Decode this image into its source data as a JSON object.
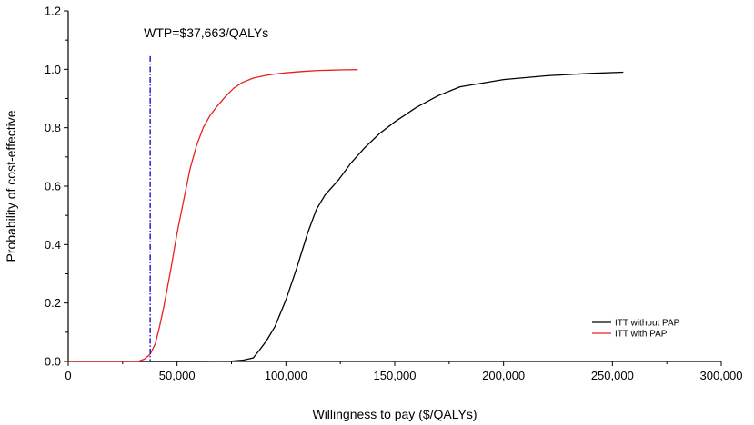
{
  "chart_data": {
    "type": "line",
    "xlabel": "Willingness to pay ($/QALYs)",
    "ylabel": "Probability of cost-effective",
    "xlim": [
      0,
      300000
    ],
    "ylim": [
      0,
      1.2
    ],
    "x_ticks": [
      0,
      50000,
      100000,
      150000,
      200000,
      250000,
      300000
    ],
    "x_tick_labels": [
      "0",
      "50,000",
      "100,000",
      "150,000",
      "200,000",
      "250,000",
      "300,000"
    ],
    "y_ticks": [
      0,
      0.2,
      0.4,
      0.6,
      0.8,
      1.0,
      1.2
    ],
    "y_tick_labels": [
      "0.0",
      "0.2",
      "0.4",
      "0.6",
      "0.8",
      "1.0",
      "1.2"
    ],
    "grid": false,
    "legend_position": "bottom-right",
    "series": [
      {
        "name": "ITT without PAP",
        "color": "#000000",
        "x": [
          0,
          60000,
          75000,
          80000,
          85000,
          88000,
          91000,
          95000,
          100000,
          105000,
          110000,
          114000,
          118000,
          124000,
          130000,
          136000,
          143000,
          150000,
          160000,
          170000,
          180000,
          200000,
          220000,
          240000,
          255000
        ],
        "y": [
          0,
          0,
          0.001,
          0.004,
          0.012,
          0.04,
          0.07,
          0.12,
          0.21,
          0.32,
          0.44,
          0.52,
          0.57,
          0.62,
          0.68,
          0.73,
          0.78,
          0.82,
          0.87,
          0.91,
          0.94,
          0.965,
          0.978,
          0.986,
          0.99
        ]
      },
      {
        "name": "ITT with PAP",
        "color": "#e8211f",
        "x": [
          0,
          32000,
          35000,
          37663,
          40000,
          42000,
          44000,
          47000,
          50000,
          53000,
          56000,
          59000,
          62000,
          65000,
          68000,
          72000,
          76000,
          80000,
          85000,
          90000,
          95000,
          100000,
          105000,
          110000,
          115000,
          120000,
          125000,
          133000
        ],
        "y": [
          0,
          0,
          0.008,
          0.025,
          0.06,
          0.12,
          0.19,
          0.31,
          0.44,
          0.55,
          0.66,
          0.74,
          0.8,
          0.84,
          0.87,
          0.905,
          0.935,
          0.955,
          0.97,
          0.978,
          0.984,
          0.988,
          0.991,
          0.994,
          0.996,
          0.997,
          0.998,
          0.999
        ]
      }
    ],
    "annotations": [
      {
        "type": "vline",
        "x": 37663,
        "color": "#1414c8",
        "style": "dash-dot",
        "label": "WTP=$37,663/QALYs"
      }
    ]
  }
}
